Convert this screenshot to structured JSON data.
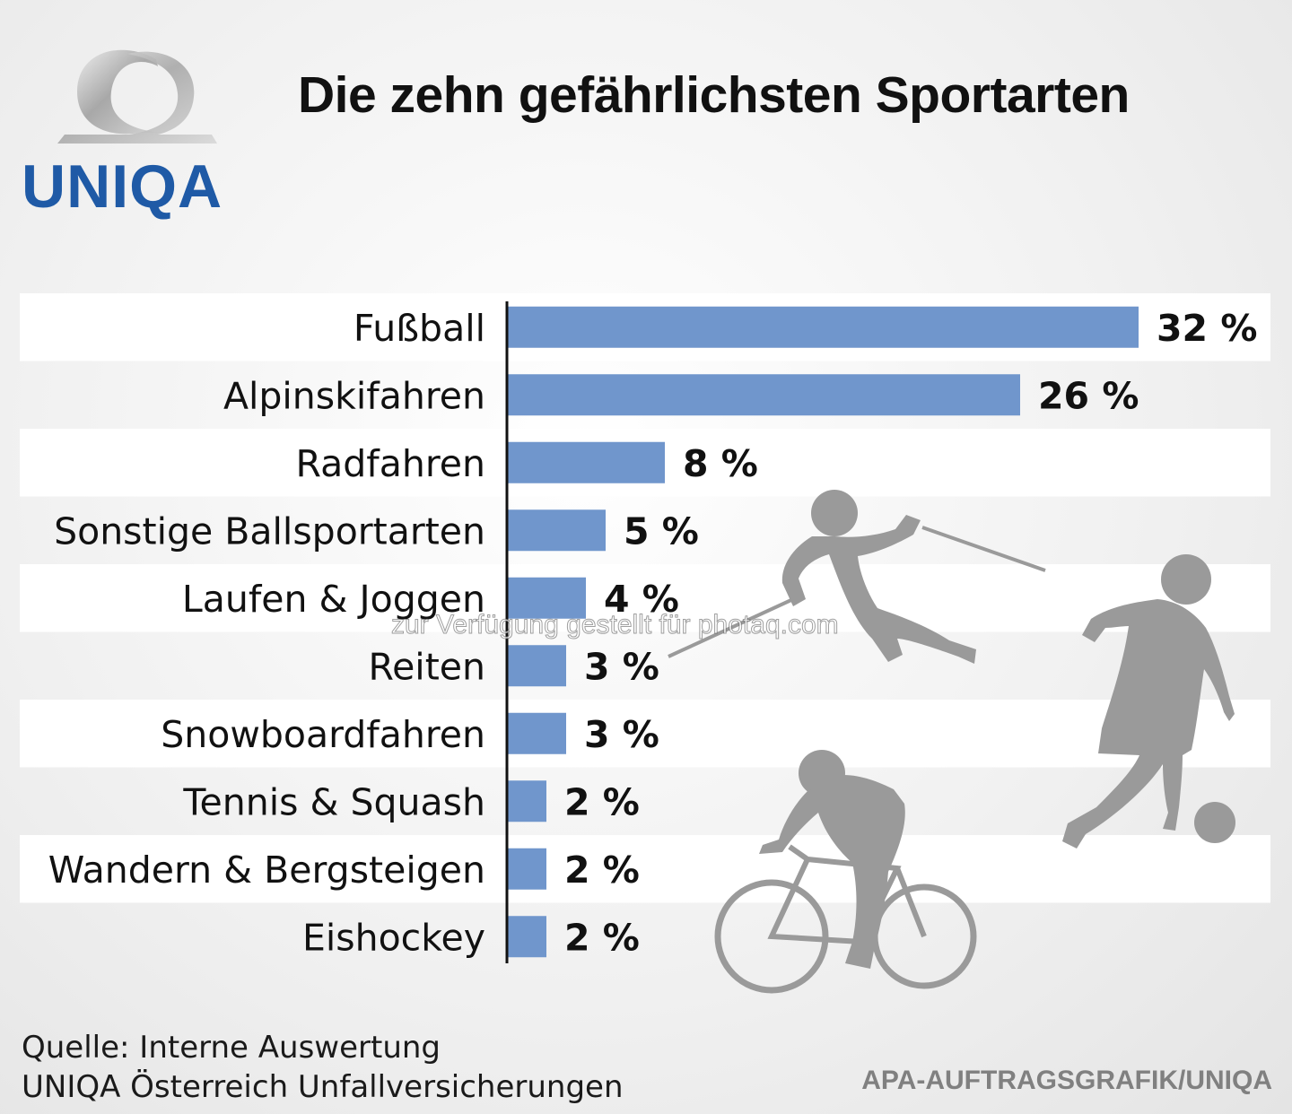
{
  "brand": {
    "name": "UNIQA",
    "color": "#1f5aa6"
  },
  "chart_data": {
    "type": "bar",
    "orientation": "horizontal",
    "title": "Die zehn gefährlichsten Sportarten",
    "categories": [
      "Fußball",
      "Alpinskifahren",
      "Radfahren",
      "Sonstige Ballsportarten",
      "Laufen & Joggen",
      "Reiten",
      "Snowboardfahren",
      "Tennis & Squash",
      "Wandern & Bergsteigen",
      "Eishockey"
    ],
    "values": [
      32,
      26,
      8,
      5,
      4,
      3,
      3,
      2,
      2,
      2
    ],
    "value_labels": [
      "32 %",
      "26 %",
      "8 %",
      "5 %",
      "4 %",
      "3 %",
      "3 %",
      "2 %",
      "2 %",
      "2 %"
    ],
    "unit": "%",
    "xlim": [
      0,
      32
    ],
    "bar_color": "#7096cc",
    "stripe_color": "#ffffff",
    "grid": false,
    "legend": "none"
  },
  "illustrations": [
    "skier-icon",
    "footballer-icon",
    "football-icon",
    "cyclist-icon"
  ],
  "watermark": "zur Verfügung gestellt für photaq.com",
  "source": {
    "line1": "Quelle: Interne Auswertung",
    "line2": "UNIQA Österreich Unfallversicherungen"
  },
  "credit": "APA-AUFTRAGSGRAFIK/UNIQA"
}
